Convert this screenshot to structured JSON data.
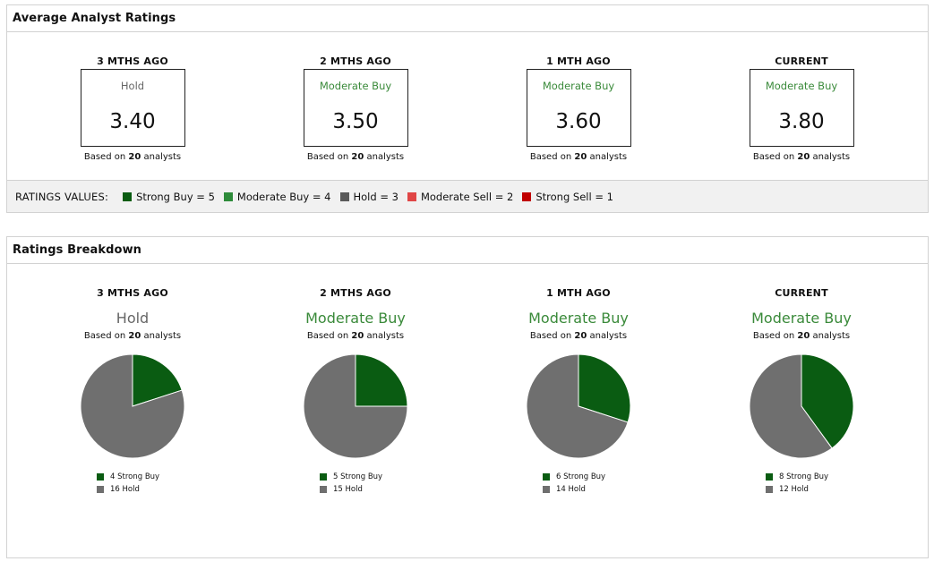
{
  "colors": {
    "strong_buy": "#0a5c12",
    "moderate_buy": "#2e8b3a",
    "hold": "#6f6f6f",
    "moderate_sell": "#e04646",
    "strong_sell": "#c00000",
    "hold_text": "#666666",
    "moderate_buy_text": "#3a8a3a"
  },
  "average": {
    "title": "Average Analyst Ratings",
    "columns": [
      {
        "heading": "3 MTHS AGO",
        "rating": "Hold",
        "rating_kind": "hold",
        "value": "3.40",
        "based_prefix": "Based on",
        "analysts": "20",
        "based_suffix": "analysts"
      },
      {
        "heading": "2 MTHS AGO",
        "rating": "Moderate Buy",
        "rating_kind": "moderate_buy",
        "value": "3.50",
        "based_prefix": "Based on",
        "analysts": "20",
        "based_suffix": "analysts"
      },
      {
        "heading": "1 MTH AGO",
        "rating": "Moderate Buy",
        "rating_kind": "moderate_buy",
        "value": "3.60",
        "based_prefix": "Based on",
        "analysts": "20",
        "based_suffix": "analysts"
      },
      {
        "heading": "CURRENT",
        "rating": "Moderate Buy",
        "rating_kind": "moderate_buy",
        "value": "3.80",
        "based_prefix": "Based on",
        "analysts": "20",
        "based_suffix": "analysts"
      }
    ],
    "values_title": "RATINGS VALUES:",
    "values_legend": [
      {
        "label": "Strong Buy = 5",
        "color": "#0a5c12"
      },
      {
        "label": "Moderate Buy = 4",
        "color": "#2e8b3a"
      },
      {
        "label": "Hold = 3",
        "color": "#5a5a5a"
      },
      {
        "label": "Moderate Sell = 2",
        "color": "#e04646"
      },
      {
        "label": "Strong Sell = 1",
        "color": "#c00000"
      }
    ]
  },
  "breakdown": {
    "title": "Ratings Breakdown",
    "columns": [
      {
        "heading": "3 MTHS AGO",
        "rating": "Hold",
        "rating_kind": "hold",
        "based_prefix": "Based on",
        "analysts": "20",
        "based_suffix": "analysts",
        "legend": [
          "4 Strong Buy",
          "16 Hold"
        ]
      },
      {
        "heading": "2 MTHS AGO",
        "rating": "Moderate Buy",
        "rating_kind": "moderate_buy",
        "based_prefix": "Based on",
        "analysts": "20",
        "based_suffix": "analysts",
        "legend": [
          "5 Strong Buy",
          "15 Hold"
        ]
      },
      {
        "heading": "1 MTH AGO",
        "rating": "Moderate Buy",
        "rating_kind": "moderate_buy",
        "based_prefix": "Based on",
        "analysts": "20",
        "based_suffix": "analysts",
        "legend": [
          "6 Strong Buy",
          "14 Hold"
        ]
      },
      {
        "heading": "CURRENT",
        "rating": "Moderate Buy",
        "rating_kind": "moderate_buy",
        "based_prefix": "Based on",
        "analysts": "20",
        "based_suffix": "analysts",
        "legend": [
          "8 Strong Buy",
          "12 Hold"
        ]
      }
    ]
  },
  "chart_data": [
    {
      "type": "pie",
      "title": "3 MTHS AGO",
      "categories": [
        "Strong Buy",
        "Hold"
      ],
      "values": [
        4,
        16
      ]
    },
    {
      "type": "pie",
      "title": "2 MTHS AGO",
      "categories": [
        "Strong Buy",
        "Hold"
      ],
      "values": [
        5,
        15
      ]
    },
    {
      "type": "pie",
      "title": "1 MTH AGO",
      "categories": [
        "Strong Buy",
        "Hold"
      ],
      "values": [
        6,
        14
      ]
    },
    {
      "type": "pie",
      "title": "CURRENT",
      "categories": [
        "Strong Buy",
        "Hold"
      ],
      "values": [
        8,
        12
      ]
    }
  ]
}
